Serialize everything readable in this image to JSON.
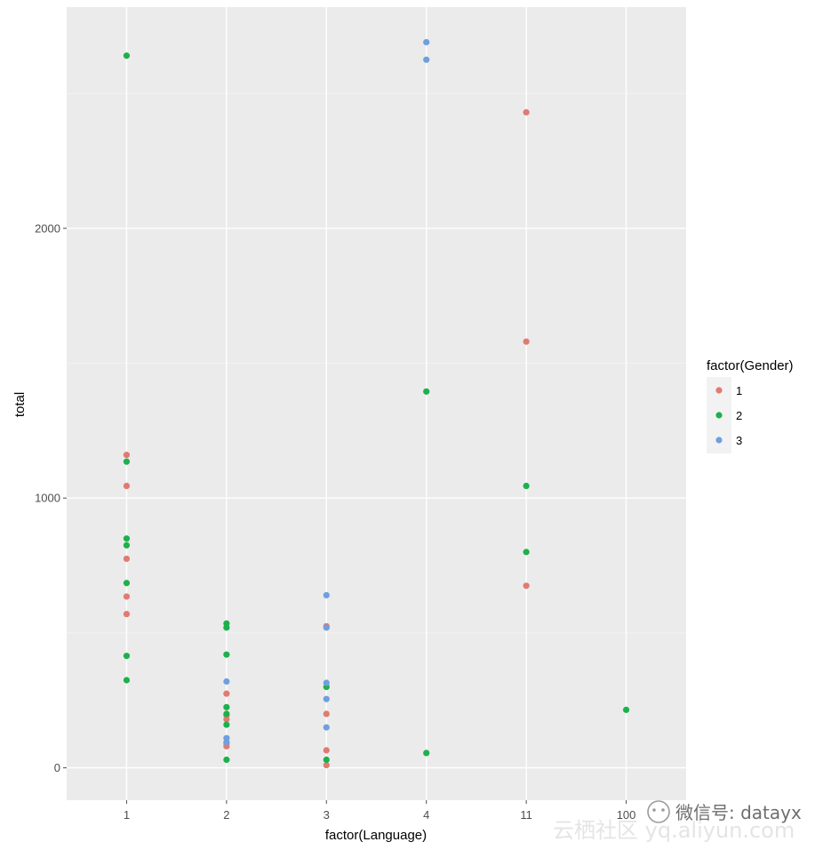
{
  "chart_data": {
    "type": "scatter",
    "title": "",
    "xlabel": "factor(Language)",
    "ylabel": "total",
    "categories": [
      "1",
      "2",
      "3",
      "4",
      "11",
      "100"
    ],
    "ylim": [
      -120,
      2820
    ],
    "y_ticks": [
      0,
      1000,
      2000
    ],
    "y_tick_labels": [
      "0",
      "1000",
      "2000"
    ],
    "grid": true,
    "legend": {
      "title": "factor(Gender)",
      "placement": "right",
      "entries": [
        "1",
        "2",
        "3"
      ]
    },
    "colors": {
      "1": "#e07b72",
      "2": "#1db04b",
      "3": "#6f9fde"
    },
    "series": [
      {
        "name": "1",
        "points": [
          [
            "1",
            1160
          ],
          [
            "1",
            1045
          ],
          [
            "1",
            775
          ],
          [
            "1",
            635
          ],
          [
            "1",
            570
          ],
          [
            "2",
            275
          ],
          [
            "2",
            195
          ],
          [
            "2",
            180
          ],
          [
            "2",
            90
          ],
          [
            "2",
            80
          ],
          [
            "3",
            525
          ],
          [
            "3",
            200
          ],
          [
            "3",
            65
          ],
          [
            "3",
            10
          ],
          [
            "11",
            2430
          ],
          [
            "11",
            1580
          ],
          [
            "11",
            675
          ]
        ]
      },
      {
        "name": "2",
        "points": [
          [
            "1",
            2640
          ],
          [
            "1",
            1135
          ],
          [
            "1",
            850
          ],
          [
            "1",
            825
          ],
          [
            "1",
            685
          ],
          [
            "1",
            415
          ],
          [
            "1",
            325
          ],
          [
            "2",
            535
          ],
          [
            "2",
            520
          ],
          [
            "2",
            420
          ],
          [
            "2",
            225
          ],
          [
            "2",
            200
          ],
          [
            "2",
            160
          ],
          [
            "2",
            30
          ],
          [
            "3",
            300
          ],
          [
            "3",
            30
          ],
          [
            "4",
            1395
          ],
          [
            "4",
            55
          ],
          [
            "11",
            1045
          ],
          [
            "11",
            800
          ],
          [
            "100",
            215
          ]
        ]
      },
      {
        "name": "3",
        "points": [
          [
            "2",
            320
          ],
          [
            "2",
            110
          ],
          [
            "2",
            95
          ],
          [
            "3",
            640
          ],
          [
            "3",
            520
          ],
          [
            "3",
            315
          ],
          [
            "3",
            255
          ],
          [
            "3",
            150
          ],
          [
            "4",
            2690
          ],
          [
            "4",
            2625
          ]
        ]
      }
    ]
  },
  "watermark": {
    "text": "微信号: datayx",
    "site_text": "云栖社区 yq.aliyun.com"
  }
}
